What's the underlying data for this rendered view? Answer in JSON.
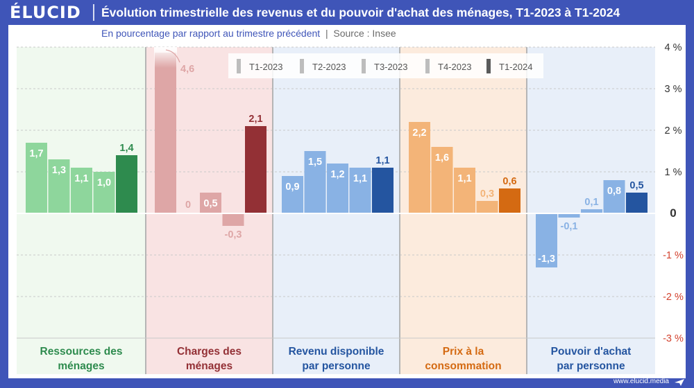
{
  "header": {
    "logo": "ÉLUCID",
    "title": "Évolution trimestrielle des revenus et du pouvoir d'achat des ménages, T1-2023 à T1-2024",
    "subtitle_main": "En pourcentage par rapport au trimestre précédent",
    "subtitle_sep": "|",
    "subtitle_source": "Source : Insee"
  },
  "footer": {
    "url": "www.elucid.media"
  },
  "chart_data": {
    "type": "bar",
    "title": "Évolution trimestrielle des revenus et du pouvoir d'achat des ménages, T1-2023 à T1-2024",
    "ylabel": "En pourcentage par rapport au trimestre précédent",
    "ylim": [
      -3,
      4
    ],
    "y_ticks": [
      4,
      3,
      2,
      1,
      0,
      -1,
      -2,
      -3
    ],
    "y_tick_labels": [
      "4 %",
      "3 %",
      "2 %",
      "1 %",
      "0",
      "-1 %",
      "-2 %",
      "-3 %"
    ],
    "legend_position": "top-center",
    "series_names": [
      "T1-2023",
      "T2-2023",
      "T3-2023",
      "T4-2023",
      "T1-2024"
    ],
    "groups": [
      {
        "name": "Ressources des ménages",
        "label_lines": [
          "Ressources des",
          "ménages"
        ],
        "color_dark": "#2e8b4e",
        "color_light": "#8ed69c",
        "bg": "#f0f9ef",
        "values": [
          1.7,
          1.3,
          1.1,
          1.0,
          1.4
        ],
        "value_labels": [
          "1,7",
          "1,3",
          "1,1",
          "1,0",
          "1,4"
        ]
      },
      {
        "name": "Charges des ménages",
        "label_lines": [
          "Charges des",
          "ménages"
        ],
        "color_dark": "#933035",
        "color_light": "#dea6a6",
        "bg": "#f9e3e3",
        "values": [
          4.6,
          0,
          0.5,
          -0.3,
          2.1
        ],
        "value_labels": [
          "4,6",
          "0",
          "0,5",
          "-0,3",
          "2,1"
        ]
      },
      {
        "name": "Revenu disponible par personne",
        "label_lines": [
          "Revenu disponible",
          "par personne"
        ],
        "color_dark": "#2455a0",
        "color_light": "#89b2e4",
        "bg": "#e8eff9",
        "values": [
          0.9,
          1.5,
          1.2,
          1.1,
          1.1
        ],
        "value_labels": [
          "0,9",
          "1,5",
          "1,2",
          "1,1",
          "1,1"
        ]
      },
      {
        "name": "Prix à la consommation",
        "label_lines": [
          "Prix à la",
          "consommation"
        ],
        "color_dark": "#d46a12",
        "color_light": "#f3b478",
        "bg": "#fcebdd",
        "values": [
          2.2,
          1.6,
          1.1,
          0.3,
          0.6
        ],
        "value_labels": [
          "2,2",
          "1,6",
          "1,1",
          "0,3",
          "0,6"
        ]
      },
      {
        "name": "Pouvoir d'achat par personne",
        "label_lines": [
          "Pouvoir d'achat",
          "par personne"
        ],
        "color_dark": "#2455a0",
        "color_light": "#89b2e4",
        "bg": "#e8eff9",
        "values": [
          -1.3,
          -0.1,
          0.1,
          0.8,
          0.5
        ],
        "value_labels": [
          "-1,3",
          "-0,1",
          "0,1",
          "0,8",
          "0,5"
        ]
      }
    ]
  }
}
